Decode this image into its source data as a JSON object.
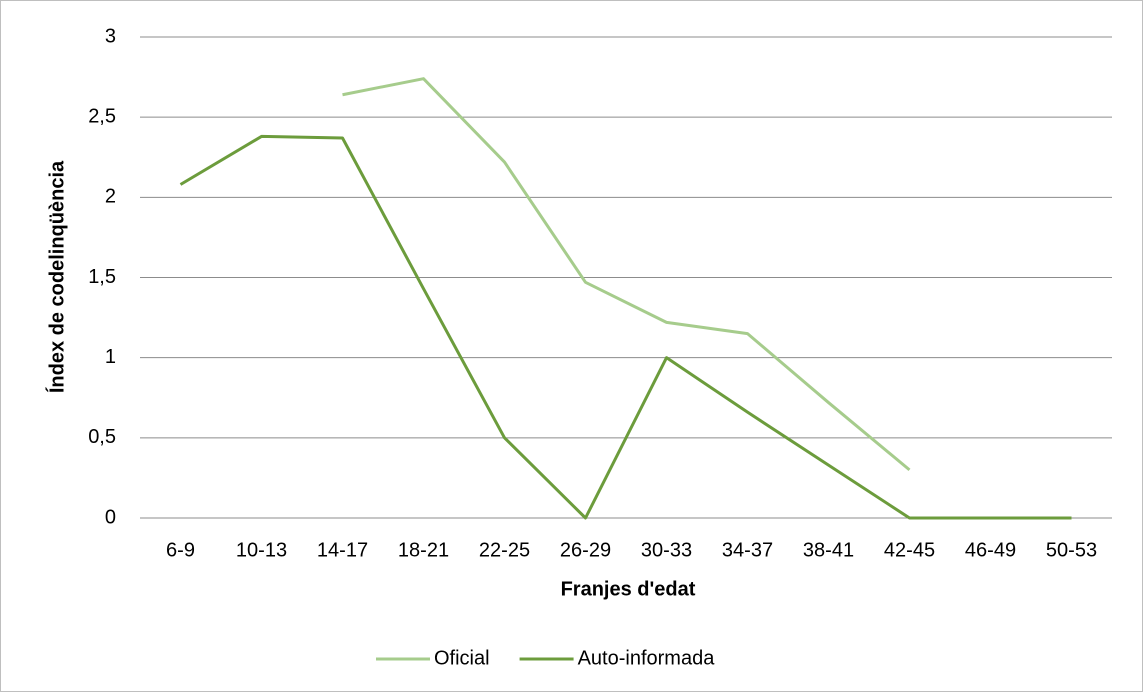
{
  "chart_data": {
    "type": "line",
    "x_label": "Franjes d'edat",
    "y_label": "Índex de codelinqüència",
    "categories": [
      "6-9",
      "10-13",
      "14-17",
      "18-21",
      "22-25",
      "26-29",
      "30-33",
      "34-37",
      "38-41",
      "42-45",
      "46-49",
      "50-53"
    ],
    "series": [
      {
        "name": "Oficial",
        "color": "#a6cc8c",
        "values": [
          null,
          null,
          2.64,
          2.74,
          2.22,
          1.47,
          1.22,
          1.15,
          0.72,
          0.3,
          null,
          null
        ]
      },
      {
        "name": "Auto-informada",
        "color": "#6c9c3c",
        "values": [
          2.08,
          2.38,
          2.37,
          1.43,
          0.5,
          0,
          1.0,
          0.66,
          0.33,
          0,
          0,
          0
        ]
      }
    ],
    "ylim": [
      0,
      3
    ],
    "yticks": [
      0,
      {
        "value": 0.5,
        "label": "0,5"
      },
      1,
      {
        "value": 1.5,
        "label": "1,5"
      },
      2,
      {
        "value": 2.5,
        "label": "2,5"
      },
      3
    ],
    "grid": true,
    "legend": "bottom"
  }
}
